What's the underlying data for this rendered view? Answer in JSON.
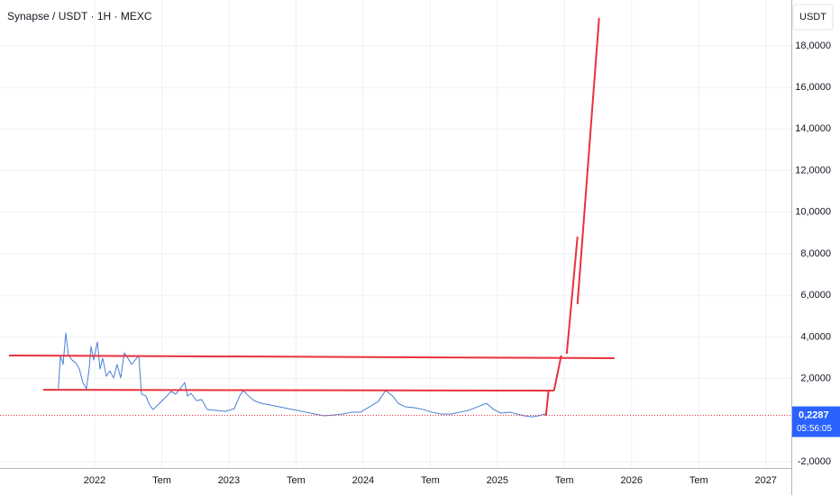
{
  "chart_data": {
    "type": "line",
    "title": "Synapse / USDT · 1H · MEXC",
    "currency": "USDT",
    "xlim": [
      2021.295,
      2027.19
    ],
    "xticks": [
      {
        "value": 2022,
        "label": "2022"
      },
      {
        "value": 2022.5,
        "label": "Tem"
      },
      {
        "value": 2023,
        "label": "2023"
      },
      {
        "value": 2023.5,
        "label": "Tem"
      },
      {
        "value": 2024,
        "label": "2024"
      },
      {
        "value": 2024.5,
        "label": "Tem"
      },
      {
        "value": 2025,
        "label": "2025"
      },
      {
        "value": 2025.5,
        "label": "Tem"
      },
      {
        "value": 2026,
        "label": "2026"
      },
      {
        "value": 2026.5,
        "label": "Tem"
      },
      {
        "value": 2027,
        "label": "2027"
      }
    ],
    "ylim": [
      -2.3,
      20.2
    ],
    "yticks": [
      {
        "value": -2,
        "label": "-2,0000"
      },
      {
        "value": 2,
        "label": "2,0000"
      },
      {
        "value": 4,
        "label": "4,0000"
      },
      {
        "value": 6,
        "label": "6,0000"
      },
      {
        "value": 8,
        "label": "8,0000"
      },
      {
        "value": 10,
        "label": "10,0000"
      },
      {
        "value": 12,
        "label": "12,0000"
      },
      {
        "value": 14,
        "label": "14,0000"
      },
      {
        "value": 16,
        "label": "16,0000"
      },
      {
        "value": 18,
        "label": "18,0000"
      }
    ],
    "grid": true,
    "last_price": {
      "value": 0.2287,
      "label": "0,2287",
      "color": "#2962ff"
    },
    "countdown": "05:56:05",
    "series": [
      {
        "color": "#4a7fd4",
        "width": 1,
        "x": [
          2021.73,
          2021.745,
          2021.765,
          2021.785,
          2021.805,
          2021.832,
          2021.859,
          2021.886,
          2021.912,
          2021.939,
          2021.959,
          2021.973,
          2021.993,
          2022.02,
          2022.04,
          2022.06,
          2022.087,
          2022.114,
          2022.141,
          2022.167,
          2022.194,
          2022.221,
          2022.248,
          2022.275,
          2022.302,
          2022.329,
          2022.349,
          2022.382,
          2022.409,
          2022.436,
          2022.47,
          2022.503,
          2022.537,
          2022.57,
          2022.604,
          2022.637,
          2022.671,
          2022.691,
          2022.718,
          2022.758,
          2022.798,
          2022.839,
          2022.906,
          2022.973,
          2023.04,
          2023.08,
          2023.107,
          2023.147,
          2023.188,
          2023.241,
          2023.308,
          2023.376,
          2023.443,
          2023.51,
          2023.577,
          2023.644,
          2023.711,
          2023.778,
          2023.845,
          2023.912,
          2023.98,
          2024.047,
          2024.114,
          2024.167,
          2024.221,
          2024.261,
          2024.315,
          2024.382,
          2024.449,
          2024.516,
          2024.584,
          2024.651,
          2024.718,
          2024.785,
          2024.852,
          2024.919,
          2024.973,
          2025.027,
          2025.094,
          2025.147,
          2025.201,
          2025.255,
          2025.308,
          2025.349,
          2025.362
        ],
        "values": [
          1.51,
          3.11,
          2.68,
          4.19,
          3.11,
          2.89,
          2.76,
          2.46,
          1.81,
          1.51,
          2.46,
          3.54,
          2.89,
          3.76,
          2.46,
          2.98,
          2.11,
          2.37,
          2.03,
          2.68,
          2.03,
          3.24,
          2.98,
          2.68,
          2.89,
          3.11,
          1.25,
          1.16,
          0.73,
          0.51,
          0.73,
          0.94,
          1.16,
          1.38,
          1.25,
          1.51,
          1.81,
          1.16,
          1.29,
          0.94,
          0.99,
          0.51,
          0.47,
          0.42,
          0.55,
          1.16,
          1.42,
          1.16,
          0.94,
          0.81,
          0.73,
          0.64,
          0.55,
          0.47,
          0.38,
          0.29,
          0.21,
          0.25,
          0.29,
          0.38,
          0.38,
          0.64,
          0.9,
          1.42,
          1.16,
          0.81,
          0.64,
          0.6,
          0.51,
          0.38,
          0.29,
          0.29,
          0.38,
          0.47,
          0.64,
          0.81,
          0.51,
          0.34,
          0.38,
          0.29,
          0.21,
          0.16,
          0.21,
          0.29,
          0.23
        ]
      },
      {
        "color": "#e8323c",
        "width": 2,
        "x": [
          2021.362,
          2025.872
        ],
        "values": [
          3.11,
          2.98
        ]
      },
      {
        "color": "#e8323c",
        "width": 2,
        "x": [
          2021.617,
          2025.422
        ],
        "values": [
          1.46,
          1.42
        ]
      },
      {
        "color": "#e8323c",
        "width": 2,
        "x": [
          2025.362,
          2025.382,
          2025.4,
          2025.422,
          2025.476,
          2025.5,
          2025.517,
          2025.597,
          2025.598,
          2025.597,
          2025.758
        ],
        "values": [
          0.21,
          1.46,
          null,
          1.42,
          3.11,
          null,
          3.19,
          8.82,
          null,
          5.58,
          19.34
        ]
      }
    ]
  }
}
